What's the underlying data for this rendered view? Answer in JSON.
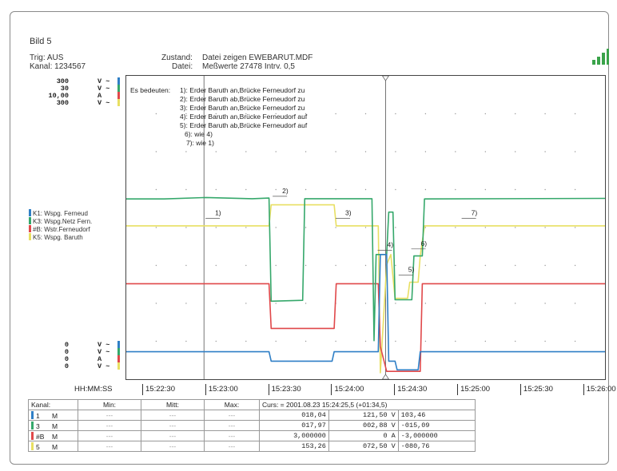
{
  "header": {
    "bild": "Bild 5",
    "trig_label": "Trig: AUS",
    "kanal_label": "Kanal: 1234567",
    "zustand_label": "Zustand:",
    "zustand_value": "Datei zeigen EWEBARUT.MDF",
    "datei_label": "Datei:",
    "datei_value": "Meßwerte 27478   Intrv. 0,5"
  },
  "colors": {
    "blue": "#2f7fc6",
    "green": "#35a86b",
    "red": "#e0484a",
    "yellow": "#e8df62",
    "cursor": "#666666"
  },
  "icons": {
    "signal": "signal-bars-icon"
  },
  "scales_top": [
    {
      "value": "300",
      "unit": "V ~",
      "color": "blue"
    },
    {
      "value": "30",
      "unit": "V ~",
      "color": "green"
    },
    {
      "value": "10,00",
      "unit": "A",
      "color": "red"
    },
    {
      "value": "300",
      "unit": "V ~",
      "color": "yellow"
    }
  ],
  "scales_bottom": [
    {
      "value": "0",
      "unit": "V ~",
      "color": "blue"
    },
    {
      "value": "0",
      "unit": "V ~",
      "color": "green"
    },
    {
      "value": "0",
      "unit": "A",
      "color": "red"
    },
    {
      "value": "0",
      "unit": "V ~",
      "color": "yellow"
    }
  ],
  "legend": [
    {
      "label": "K1: Wspg. Ferneud",
      "color": "blue"
    },
    {
      "label": "K3: Wspg.Netz Fern.",
      "color": "green"
    },
    {
      "label": "#B: Wstr.Ferneudorf",
      "color": "red"
    },
    {
      "label": "K5: Wspg. Baruth",
      "color": "yellow"
    }
  ],
  "annotation": {
    "title": "Es bedeuten:",
    "lines": [
      "1): Erder Baruth an,Brücke Ferneudorf zu",
      "2): Erder Baruth ab,Brücke Ferneudorf zu",
      "3): Erder Baruth an,Brücke Ferneudorf zu",
      "4): Erder Baruth an,Brücke Ferneudorf auf",
      "5): Erder Baruth ab,Brücke Ferneudorf auf",
      "6): wie 4)",
      "7): wie 1)"
    ]
  },
  "chart_data": {
    "type": "line",
    "x_unit": "HH:MM:SS",
    "xlim": [
      1342,
      1570
    ],
    "ylim": [
      0,
      100
    ],
    "grid": true,
    "x_tick_labels": [
      "15:22:30",
      "15:23:00",
      "15:23:30",
      "15:24:00",
      "15:24:30",
      "15:25:00",
      "15:25:30",
      "15:26:00"
    ],
    "x_ticks": [
      1350,
      1380,
      1410,
      1440,
      1470,
      1500,
      1530,
      1560
    ],
    "cursor_x": 1465.5,
    "event_x": 1379,
    "series": [
      {
        "name": "K1: Wspg. Ferneud",
        "color": "blue",
        "points": [
          [
            1342,
            7.2
          ],
          [
            1410,
            7.2
          ],
          [
            1411,
            4
          ],
          [
            1440,
            4
          ],
          [
            1441,
            7.2
          ],
          [
            1462,
            7.2
          ],
          [
            1463,
            40.5
          ],
          [
            1466,
            40.5
          ],
          [
            1467,
            4
          ],
          [
            1470,
            4
          ],
          [
            1471,
            1
          ],
          [
            1481,
            1
          ],
          [
            1482,
            7.2
          ],
          [
            1570,
            7.2
          ]
        ]
      },
      {
        "name": "K3: Wspg.Netz Fern.",
        "color": "green",
        "points": [
          [
            1342,
            59.5
          ],
          [
            1360,
            59.5
          ],
          [
            1380,
            60
          ],
          [
            1402,
            59.6
          ],
          [
            1410,
            59.8
          ],
          [
            1411,
            24.5
          ],
          [
            1426,
            24.8
          ],
          [
            1427,
            59.6
          ],
          [
            1440,
            59.6
          ],
          [
            1441,
            59.6
          ],
          [
            1459,
            59.6
          ],
          [
            1460,
            11
          ],
          [
            1461,
            40.5
          ],
          [
            1466,
            40.5
          ],
          [
            1467,
            55
          ],
          [
            1469,
            55
          ],
          [
            1470,
            25
          ],
          [
            1478,
            25
          ],
          [
            1479,
            40
          ],
          [
            1483,
            40
          ],
          [
            1484,
            59.5
          ],
          [
            1570,
            59.7
          ]
        ]
      },
      {
        "name": "#B: Wstr.Ferneudorf",
        "color": "red",
        "points": [
          [
            1342,
            30.5
          ],
          [
            1410,
            30.5
          ],
          [
            1411,
            15.2
          ],
          [
            1441,
            15.2
          ],
          [
            1442,
            30.5
          ],
          [
            1462,
            30.5
          ],
          [
            1463,
            9
          ],
          [
            1466,
            0.5
          ],
          [
            1482,
            0.5
          ],
          [
            1483,
            30.5
          ],
          [
            1570,
            30.5
          ]
        ]
      },
      {
        "name": "K5: Wspg. Baruth",
        "color": "yellow",
        "points": [
          [
            1342,
            50.3
          ],
          [
            1410,
            50.3
          ],
          [
            1411,
            57.5
          ],
          [
            1441,
            57.5
          ],
          [
            1442,
            50.3
          ],
          [
            1462,
            50.3
          ],
          [
            1463,
            0
          ],
          [
            1466,
            37
          ],
          [
            1468,
            40.5
          ],
          [
            1470,
            25.5
          ],
          [
            1476,
            25.5
          ],
          [
            1477,
            31
          ],
          [
            1481,
            31
          ],
          [
            1482,
            40
          ],
          [
            1484,
            50.3
          ],
          [
            1570,
            50.3
          ]
        ]
      }
    ],
    "event_labels": [
      {
        "text": "1)",
        "x": 1382,
        "y": 54
      },
      {
        "text": "2)",
        "x": 1414,
        "y": 61.5
      },
      {
        "text": "3)",
        "x": 1444,
        "y": 54
      },
      {
        "text": "4)",
        "x": 1464,
        "y": 43
      },
      {
        "text": "5)",
        "x": 1474,
        "y": 34.5
      },
      {
        "text": "6)",
        "x": 1480,
        "y": 43.5
      },
      {
        "text": "7)",
        "x": 1504,
        "y": 54
      }
    ]
  },
  "time_axis_label": "HH:MM:SS",
  "table": {
    "headers": [
      "Kanal:",
      "Min:",
      "Mitt:",
      "Max:"
    ],
    "cursor_header": "Curs: = 2001.08.23 15:24:25,5 (+01:34,5)",
    "rows": [
      {
        "ch": "1",
        "mode": "M",
        "color": "blue",
        "min": "---",
        "mitt": "---",
        "max": "---",
        "c1": "018,04",
        "c2": "121,50  V",
        "c3": "103,46"
      },
      {
        "ch": "3",
        "mode": "M",
        "color": "green",
        "min": "---",
        "mitt": "---",
        "max": "---",
        "c1": "017,97",
        "c2": "002,88  V",
        "c3": "-015,09"
      },
      {
        "ch": "#B",
        "mode": "M",
        "color": "red",
        "min": "---",
        "mitt": "---",
        "max": "---",
        "c1": "3,000000",
        "c2": "0 A",
        "c3": "-3,000000"
      },
      {
        "ch": "5",
        "mode": "M",
        "color": "yellow",
        "min": "---",
        "mitt": "---",
        "max": "---",
        "c1": "153,26",
        "c2": "072,50  V",
        "c3": "-080,76"
      }
    ]
  }
}
